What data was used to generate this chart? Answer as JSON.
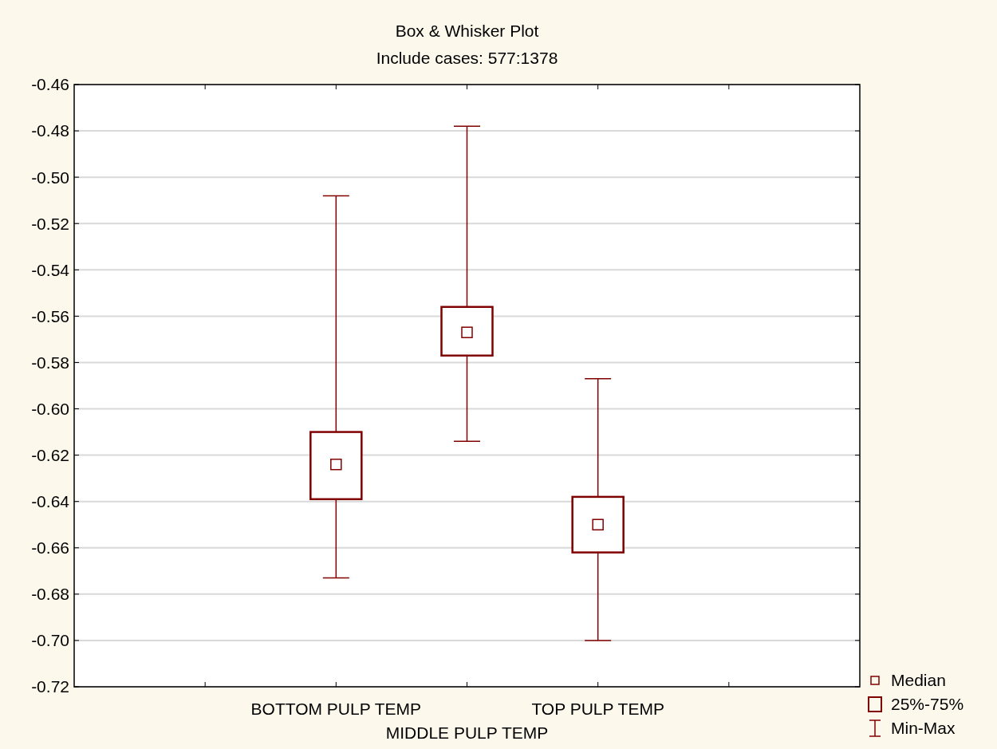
{
  "chart_data": {
    "type": "box",
    "title": "Box & Whisker Plot",
    "subtitle": "Include cases: 577:1378",
    "categories": [
      null,
      "BOTTOM PULP TEMP",
      "MIDDLE PULP TEMP",
      "TOP PULP TEMP",
      null
    ],
    "color": "#800000",
    "boxes": [
      null,
      {
        "low": -0.673,
        "q1": -0.639,
        "median": -0.624,
        "q3": -0.61,
        "high": -0.508
      },
      {
        "low": -0.614,
        "q1": -0.577,
        "median": -0.567,
        "q3": -0.556,
        "high": -0.478
      },
      {
        "low": -0.7,
        "q1": -0.662,
        "median": -0.65,
        "q3": -0.638,
        "high": -0.587
      },
      null
    ],
    "ylim": [
      -0.72,
      -0.46
    ],
    "yticks": [
      {
        "value": -0.72,
        "label": "-0.72"
      },
      {
        "value": -0.7,
        "label": "-0.70"
      },
      {
        "value": -0.68,
        "label": "-0.68"
      },
      {
        "value": -0.66,
        "label": "-0.66"
      },
      {
        "value": -0.64,
        "label": "-0.64"
      },
      {
        "value": -0.62,
        "label": "-0.62"
      },
      {
        "value": -0.6,
        "label": "-0.60"
      },
      {
        "value": -0.58,
        "label": "-0.58"
      },
      {
        "value": -0.56,
        "label": "-0.56"
      },
      {
        "value": -0.54,
        "label": "-0.54"
      },
      {
        "value": -0.52,
        "label": "-0.52"
      },
      {
        "value": -0.5,
        "label": "-0.50"
      },
      {
        "value": -0.48,
        "label": "-0.48"
      },
      {
        "value": -0.46,
        "label": "-0.46"
      }
    ],
    "grid": "y",
    "annotations": [
      "Median",
      "25%-75%",
      "Min-Max"
    ]
  }
}
